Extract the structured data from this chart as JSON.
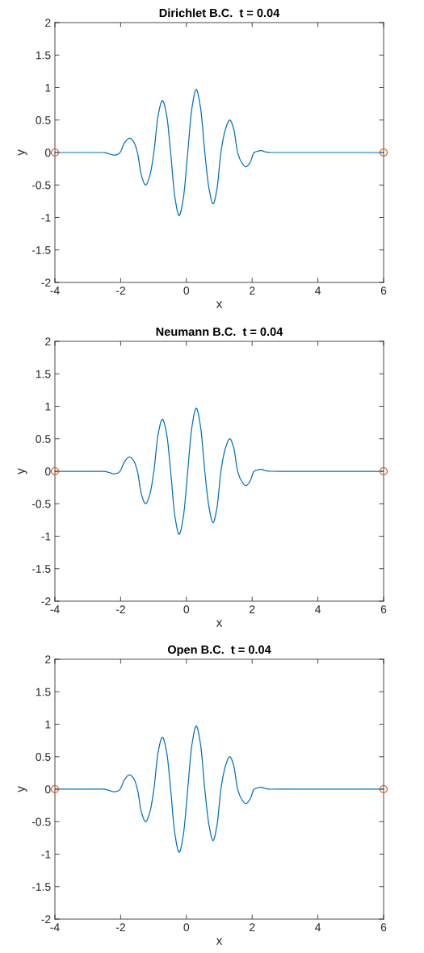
{
  "chart_data": [
    {
      "type": "line",
      "title": "Dirichlet B.C.  t = 0.04",
      "xlabel": "x",
      "ylabel": "y",
      "xlim": [
        -4,
        6
      ],
      "xticks": [
        -4,
        -2,
        0,
        2,
        4,
        6
      ],
      "ylim": [
        -2,
        2
      ],
      "yticks": [
        -2,
        -1.5,
        -1,
        -0.5,
        0,
        0.5,
        1,
        1.5,
        2
      ],
      "grid": false,
      "series": [
        {
          "color": "#0072bd",
          "marker": "none",
          "x": [
            -4,
            -2.52,
            -2.35,
            -2.19,
            -2.1,
            -2.02,
            -1.88,
            -1.73,
            -1.6,
            -1.49,
            -1.37,
            -1.24,
            -1.11,
            -0.99,
            -0.86,
            -0.73,
            -0.6,
            -0.48,
            -0.35,
            -0.22,
            -0.09,
            0.04,
            0.17,
            0.3,
            0.43,
            0.56,
            0.69,
            0.81,
            0.93,
            1.05,
            1.19,
            1.32,
            1.44,
            1.56,
            1.69,
            1.81,
            1.94,
            2.06,
            2.17,
            2.27,
            2.4,
            2.55,
            6
          ],
          "values": [
            0,
            0,
            -0.02,
            -0.04,
            -0.03,
            0,
            0.15,
            0.22,
            0.16,
            0,
            -0.35,
            -0.5,
            -0.35,
            0,
            0.57,
            0.8,
            0.57,
            0,
            -0.69,
            -0.97,
            -0.69,
            0,
            0.69,
            0.97,
            0.69,
            0,
            -0.56,
            -0.79,
            -0.56,
            0,
            0.36,
            0.5,
            0.36,
            0,
            -0.16,
            -0.22,
            -0.15,
            0,
            0.02,
            0.03,
            0.01,
            0,
            0
          ]
        },
        {
          "type": "scatter",
          "color": "#d95319",
          "marker": "circle",
          "x": [
            -4,
            6
          ],
          "values": [
            0,
            0
          ]
        }
      ]
    },
    {
      "type": "line",
      "title": "Neumann B.C.  t = 0.04",
      "xlabel": "x",
      "ylabel": "y",
      "xlim": [
        -4,
        6
      ],
      "xticks": [
        -4,
        -2,
        0,
        2,
        4,
        6
      ],
      "ylim": [
        -2,
        2
      ],
      "yticks": [
        -2,
        -1.5,
        -1,
        -0.5,
        0,
        0.5,
        1,
        1.5,
        2
      ],
      "grid": false,
      "series": [
        {
          "color": "#0072bd",
          "marker": "none",
          "x": [
            -4,
            -2.52,
            -2.35,
            -2.19,
            -2.1,
            -2.02,
            -1.88,
            -1.73,
            -1.6,
            -1.49,
            -1.37,
            -1.24,
            -1.11,
            -0.99,
            -0.86,
            -0.73,
            -0.6,
            -0.48,
            -0.35,
            -0.22,
            -0.09,
            0.04,
            0.17,
            0.3,
            0.43,
            0.56,
            0.69,
            0.81,
            0.93,
            1.05,
            1.19,
            1.32,
            1.44,
            1.56,
            1.69,
            1.81,
            1.94,
            2.06,
            2.17,
            2.27,
            2.4,
            2.55,
            6
          ],
          "values": [
            0,
            0,
            -0.02,
            -0.04,
            -0.03,
            0,
            0.15,
            0.22,
            0.16,
            0,
            -0.35,
            -0.5,
            -0.35,
            0,
            0.57,
            0.8,
            0.57,
            0,
            -0.69,
            -0.97,
            -0.69,
            0,
            0.69,
            0.97,
            0.69,
            0,
            -0.56,
            -0.79,
            -0.56,
            0,
            0.36,
            0.5,
            0.36,
            0,
            -0.16,
            -0.22,
            -0.15,
            0,
            0.02,
            0.03,
            0.01,
            0,
            0
          ]
        },
        {
          "type": "scatter",
          "color": "#d95319",
          "marker": "circle",
          "x": [
            -4,
            6
          ],
          "values": [
            0,
            0
          ]
        }
      ]
    },
    {
      "type": "line",
      "title": "Open B.C.  t = 0.04",
      "xlabel": "x",
      "ylabel": "y",
      "xlim": [
        -4,
        6
      ],
      "xticks": [
        -4,
        -2,
        0,
        2,
        4,
        6
      ],
      "ylim": [
        -2,
        2
      ],
      "yticks": [
        -2,
        -1.5,
        -1,
        -0.5,
        0,
        0.5,
        1,
        1.5,
        2
      ],
      "grid": false,
      "series": [
        {
          "color": "#0072bd",
          "marker": "none",
          "x": [
            -4,
            -2.52,
            -2.35,
            -2.19,
            -2.1,
            -2.02,
            -1.88,
            -1.73,
            -1.6,
            -1.49,
            -1.37,
            -1.24,
            -1.11,
            -0.99,
            -0.86,
            -0.73,
            -0.6,
            -0.48,
            -0.35,
            -0.22,
            -0.09,
            0.04,
            0.17,
            0.3,
            0.43,
            0.56,
            0.69,
            0.81,
            0.93,
            1.05,
            1.19,
            1.32,
            1.44,
            1.56,
            1.69,
            1.81,
            1.94,
            2.06,
            2.17,
            2.27,
            2.4,
            2.55,
            6
          ],
          "values": [
            0,
            0,
            -0.02,
            -0.04,
            -0.03,
            0,
            0.15,
            0.22,
            0.16,
            0,
            -0.35,
            -0.5,
            -0.35,
            0,
            0.57,
            0.8,
            0.57,
            0,
            -0.69,
            -0.97,
            -0.69,
            0,
            0.69,
            0.97,
            0.69,
            0,
            -0.56,
            -0.79,
            -0.56,
            0,
            0.36,
            0.5,
            0.36,
            0,
            -0.16,
            -0.22,
            -0.15,
            0,
            0.02,
            0.03,
            0.01,
            0,
            0
          ]
        },
        {
          "type": "scatter",
          "color": "#d95319",
          "marker": "circle",
          "x": [
            -4,
            6
          ],
          "values": [
            0,
            0
          ]
        }
      ]
    }
  ]
}
